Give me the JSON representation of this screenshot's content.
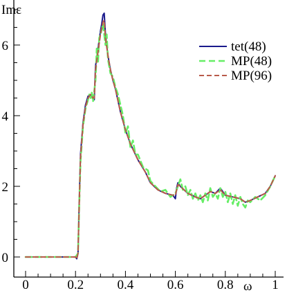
{
  "chart_data": {
    "type": "line",
    "title": "",
    "xlabel": "ω",
    "ylabel": "Imε",
    "xlim": [
      0,
      1
    ],
    "ylim": [
      0,
      7
    ],
    "xticks": [
      0,
      0.2,
      0.4,
      0.6,
      0.8,
      1
    ],
    "xtick_labels": [
      "0",
      "0.2",
      "0.4",
      "0.6",
      "0.8",
      "1"
    ],
    "yticks": [
      0,
      2,
      4,
      6
    ],
    "ytick_labels": [
      "0",
      "2",
      "4",
      "6"
    ],
    "grid": false,
    "legend_position": "top-right",
    "series": [
      {
        "name": "tet(48)",
        "color": "#1a1a8c",
        "style": "solid",
        "x": [
          0,
          0.1,
          0.2,
          0.205,
          0.21,
          0.215,
          0.22,
          0.23,
          0.24,
          0.25,
          0.26,
          0.27,
          0.275,
          0.28,
          0.29,
          0.3,
          0.305,
          0.31,
          0.315,
          0.32,
          0.33,
          0.34,
          0.35,
          0.36,
          0.38,
          0.4,
          0.42,
          0.45,
          0.48,
          0.5,
          0.53,
          0.56,
          0.59,
          0.6,
          0.605,
          0.61,
          0.62,
          0.65,
          0.68,
          0.7,
          0.72,
          0.74,
          0.76,
          0.78,
          0.8,
          0.83,
          0.86,
          0.88,
          0.9,
          0.93,
          0.96,
          0.98,
          1.0
        ],
        "y": [
          0,
          0,
          0,
          -0.05,
          0.1,
          1.6,
          2.9,
          3.8,
          4.3,
          4.55,
          4.6,
          4.5,
          4.45,
          5.4,
          5.9,
          6.4,
          6.6,
          6.85,
          6.9,
          6.3,
          5.7,
          5.3,
          5.0,
          4.75,
          4.1,
          3.6,
          3.2,
          2.75,
          2.4,
          2.1,
          1.9,
          1.8,
          1.75,
          1.65,
          1.95,
          2.1,
          2.0,
          1.8,
          1.7,
          1.65,
          1.75,
          1.85,
          1.8,
          1.95,
          1.75,
          1.7,
          1.65,
          1.55,
          1.6,
          1.7,
          1.8,
          2.0,
          2.3
        ]
      },
      {
        "name": "MP(48)",
        "color": "#66ee66",
        "style": "dashed",
        "x": [
          0,
          0.1,
          0.2,
          0.21,
          0.215,
          0.22,
          0.23,
          0.24,
          0.25,
          0.255,
          0.26,
          0.265,
          0.27,
          0.28,
          0.285,
          0.29,
          0.295,
          0.3,
          0.31,
          0.32,
          0.325,
          0.33,
          0.34,
          0.35,
          0.36,
          0.37,
          0.38,
          0.39,
          0.4,
          0.41,
          0.42,
          0.43,
          0.44,
          0.45,
          0.47,
          0.49,
          0.5,
          0.52,
          0.54,
          0.56,
          0.58,
          0.6,
          0.61,
          0.62,
          0.63,
          0.64,
          0.65,
          0.66,
          0.67,
          0.68,
          0.69,
          0.7,
          0.71,
          0.72,
          0.73,
          0.74,
          0.75,
          0.76,
          0.77,
          0.78,
          0.79,
          0.8,
          0.81,
          0.82,
          0.83,
          0.84,
          0.85,
          0.86,
          0.87,
          0.88,
          0.89,
          0.9,
          0.92,
          0.94,
          0.96,
          0.98,
          1.0
        ],
        "y": [
          0,
          0,
          0,
          0.1,
          1.5,
          2.7,
          3.7,
          4.2,
          4.45,
          4.6,
          4.5,
          4.65,
          4.4,
          5.0,
          5.9,
          5.5,
          6.2,
          6.3,
          6.6,
          6.0,
          6.3,
          5.6,
          5.2,
          5.1,
          4.8,
          4.6,
          4.3,
          4.0,
          3.5,
          3.7,
          3.1,
          3.3,
          2.9,
          2.9,
          2.55,
          2.45,
          2.15,
          2.0,
          1.85,
          1.9,
          1.7,
          1.8,
          2.0,
          2.2,
          1.9,
          2.0,
          1.75,
          1.9,
          1.65,
          1.8,
          1.6,
          1.75,
          1.55,
          1.8,
          1.6,
          1.95,
          1.7,
          1.8,
          1.65,
          1.95,
          1.7,
          1.85,
          1.55,
          1.8,
          1.5,
          1.75,
          1.45,
          1.7,
          1.5,
          1.4,
          1.6,
          1.55,
          1.7,
          1.6,
          1.75,
          2.0,
          2.3
        ]
      },
      {
        "name": "MP(96)",
        "color": "#b85a4a",
        "style": "dashed",
        "x": [
          0,
          0.1,
          0.2,
          0.205,
          0.21,
          0.215,
          0.22,
          0.23,
          0.24,
          0.25,
          0.26,
          0.27,
          0.275,
          0.28,
          0.29,
          0.3,
          0.31,
          0.315,
          0.32,
          0.33,
          0.34,
          0.35,
          0.36,
          0.38,
          0.4,
          0.42,
          0.45,
          0.48,
          0.5,
          0.53,
          0.56,
          0.59,
          0.6,
          0.61,
          0.62,
          0.65,
          0.68,
          0.7,
          0.72,
          0.74,
          0.76,
          0.78,
          0.8,
          0.83,
          0.86,
          0.88,
          0.9,
          0.93,
          0.96,
          0.98,
          1.0
        ],
        "y": [
          0,
          0,
          0,
          -0.05,
          0.1,
          1.5,
          2.8,
          3.75,
          4.25,
          4.5,
          4.6,
          4.5,
          4.5,
          5.3,
          5.8,
          6.3,
          6.65,
          6.7,
          6.2,
          5.7,
          5.3,
          5.0,
          4.75,
          4.1,
          3.6,
          3.2,
          2.75,
          2.4,
          2.1,
          1.9,
          1.8,
          1.75,
          1.75,
          2.05,
          2.0,
          1.8,
          1.7,
          1.65,
          1.75,
          1.85,
          1.8,
          1.9,
          1.75,
          1.7,
          1.65,
          1.55,
          1.6,
          1.7,
          1.8,
          2.0,
          2.3
        ]
      }
    ]
  }
}
